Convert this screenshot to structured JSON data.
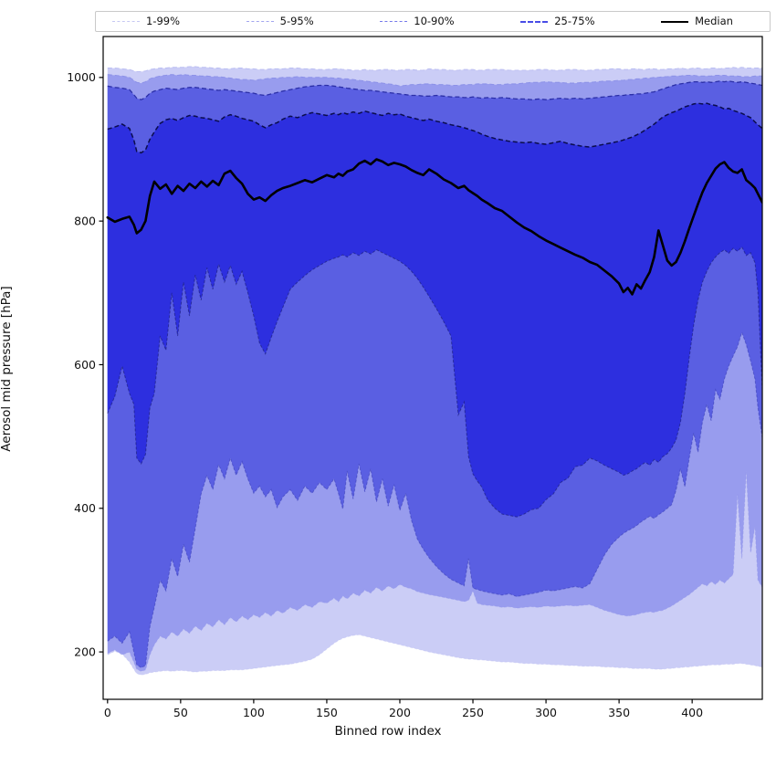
{
  "legend": {
    "entries": [
      {
        "label": "1-99%",
        "color": "#c6c8f3",
        "style": "dashed",
        "weight": 1.2
      },
      {
        "label": "5-95%",
        "color": "#a2a5ef",
        "style": "dashed",
        "weight": 1.2
      },
      {
        "label": "10-90%",
        "color": "#7579ea",
        "style": "dashed",
        "weight": 1.5
      },
      {
        "label": "25-75%",
        "color": "#484ce6",
        "style": "dashed",
        "weight": 2.0
      },
      {
        "label": "Median",
        "color": "#000000",
        "style": "solid",
        "weight": 2.8
      }
    ]
  },
  "axes": {
    "xlabel": "Binned row index",
    "ylabel": "Aerosol mid pressure [hPa]",
    "x_ticks": [
      0,
      50,
      100,
      150,
      200,
      250,
      300,
      350,
      400
    ],
    "y_ticks": [
      200,
      400,
      600,
      800,
      1000
    ]
  },
  "chart_data": {
    "type": "area",
    "subtype": "percentile-fan-chart",
    "title": "",
    "xlabel": "Binned row index",
    "ylabel": "Aerosol mid pressure [hPa]",
    "xlim": [
      -3,
      448
    ],
    "ylim": [
      134,
      1057
    ],
    "grid": false,
    "legend_position": "top-outside-horizontal",
    "x": [
      0,
      5,
      10,
      15,
      18,
      20,
      23,
      26,
      29,
      32,
      36,
      40,
      44,
      48,
      52,
      56,
      60,
      64,
      68,
      72,
      76,
      80,
      84,
      88,
      92,
      96,
      100,
      104,
      108,
      112,
      116,
      120,
      125,
      130,
      135,
      140,
      145,
      150,
      155,
      158,
      161,
      164,
      168,
      172,
      176,
      180,
      184,
      188,
      192,
      196,
      200,
      204,
      208,
      212,
      216,
      220,
      225,
      230,
      235,
      240,
      244,
      247,
      250,
      253,
      256,
      260,
      265,
      270,
      275,
      280,
      285,
      290,
      295,
      300,
      305,
      310,
      315,
      320,
      325,
      330,
      335,
      340,
      345,
      350,
      353,
      356,
      359,
      362,
      365,
      368,
      371,
      374,
      377,
      380,
      383,
      386,
      389,
      392,
      395,
      398,
      401,
      404,
      407,
      410,
      413,
      416,
      419,
      422,
      425,
      428,
      431,
      434,
      437,
      440,
      443,
      445,
      448
    ],
    "series": {
      "p01": [
        196,
        201,
        197,
        186,
        176,
        170,
        168,
        169,
        171,
        172,
        173,
        174,
        173,
        174,
        174,
        173,
        172,
        173,
        173,
        174,
        174,
        174,
        175,
        175,
        175,
        176,
        177,
        178,
        179,
        180,
        181,
        182,
        183,
        185,
        187,
        190,
        196,
        204,
        212,
        216,
        219,
        221,
        223,
        224,
        222,
        220,
        218,
        216,
        214,
        212,
        210,
        208,
        206,
        204,
        202,
        200,
        198,
        196,
        194,
        192,
        191,
        190,
        190,
        189,
        189,
        188,
        187,
        186,
        186,
        185,
        184,
        184,
        183,
        183,
        182,
        182,
        181,
        181,
        180,
        180,
        180,
        179,
        179,
        178,
        178,
        178,
        177,
        177,
        177,
        177,
        177,
        176,
        176,
        176,
        177,
        177,
        178,
        178,
        179,
        179,
        180,
        180,
        181,
        181,
        182,
        182,
        182,
        183,
        183,
        183,
        184,
        184,
        183,
        182,
        181,
        180,
        179
      ],
      "p05": [
        198,
        203,
        196,
        200,
        186,
        176,
        173,
        175,
        196,
        210,
        222,
        218,
        228,
        222,
        232,
        226,
        236,
        230,
        240,
        235,
        245,
        238,
        248,
        242,
        250,
        245,
        252,
        248,
        255,
        250,
        258,
        254,
        262,
        258,
        266,
        262,
        270,
        268,
        275,
        270,
        278,
        274,
        282,
        278,
        286,
        282,
        290,
        285,
        292,
        288,
        294,
        290,
        288,
        284,
        282,
        280,
        278,
        276,
        274,
        272,
        270,
        272,
        285,
        268,
        266,
        265,
        264,
        262,
        263,
        261,
        262,
        263,
        262,
        264,
        263,
        264,
        265,
        264,
        265,
        266,
        262,
        258,
        255,
        252,
        251,
        250,
        251,
        252,
        254,
        255,
        256,
        255,
        257,
        258,
        261,
        264,
        268,
        272,
        276,
        280,
        285,
        290,
        295,
        292,
        298,
        294,
        300,
        296,
        302,
        308,
        420,
        330,
        452,
        338,
        375,
        300,
        290
      ],
      "p10": [
        215,
        222,
        212,
        228,
        200,
        182,
        178,
        181,
        235,
        262,
        300,
        285,
        330,
        305,
        350,
        325,
        372,
        420,
        446,
        426,
        461,
        441,
        470,
        446,
        465,
        441,
        421,
        431,
        416,
        426,
        401,
        416,
        426,
        411,
        431,
        421,
        436,
        426,
        441,
        421,
        399,
        452,
        413,
        462,
        423,
        455,
        409,
        441,
        403,
        433,
        397,
        421,
        383,
        357,
        343,
        331,
        319,
        309,
        301,
        296,
        292,
        330,
        289,
        287,
        285,
        283,
        281,
        279,
        281,
        277,
        279,
        281,
        283,
        286,
        285,
        287,
        289,
        291,
        289,
        295,
        315,
        335,
        350,
        360,
        365,
        369,
        372,
        376,
        381,
        385,
        389,
        386,
        391,
        395,
        400,
        405,
        425,
        455,
        430,
        470,
        505,
        478,
        520,
        545,
        522,
        565,
        552,
        580,
        598,
        612,
        625,
        645,
        628,
        605,
        580,
        540,
        498
      ],
      "p25": [
        532,
        556,
        598,
        560,
        545,
        470,
        462,
        475,
        540,
        560,
        640,
        620,
        700,
        640,
        715,
        668,
        725,
        690,
        735,
        705,
        740,
        715,
        738,
        712,
        730,
        700,
        668,
        630,
        615,
        638,
        660,
        680,
        705,
        715,
        724,
        732,
        738,
        744,
        748,
        750,
        753,
        750,
        756,
        752,
        758,
        754,
        760,
        756,
        752,
        748,
        744,
        738,
        730,
        720,
        708,
        695,
        678,
        660,
        640,
        530,
        548,
        472,
        448,
        438,
        430,
        412,
        400,
        392,
        390,
        388,
        392,
        398,
        400,
        412,
        420,
        436,
        442,
        458,
        460,
        470,
        466,
        460,
        455,
        450,
        446,
        448,
        452,
        455,
        460,
        464,
        460,
        468,
        464,
        472,
        476,
        484,
        495,
        520,
        560,
        610,
        655,
        690,
        715,
        730,
        742,
        750,
        756,
        760,
        755,
        762,
        758,
        764,
        752,
        756,
        742,
        700,
        565
      ],
      "median": [
        805,
        799,
        803,
        806,
        795,
        783,
        788,
        800,
        835,
        855,
        845,
        851,
        838,
        849,
        842,
        852,
        846,
        855,
        848,
        856,
        850,
        866,
        870,
        860,
        852,
        838,
        830,
        833,
        828,
        836,
        842,
        846,
        849,
        853,
        857,
        854,
        859,
        864,
        861,
        866,
        863,
        869,
        872,
        880,
        884,
        879,
        886,
        883,
        878,
        881,
        879,
        876,
        871,
        867,
        864,
        872,
        866,
        858,
        853,
        846,
        849,
        843,
        839,
        835,
        830,
        825,
        818,
        814,
        806,
        798,
        791,
        786,
        779,
        773,
        768,
        763,
        758,
        753,
        749,
        743,
        739,
        731,
        723,
        713,
        701,
        707,
        698,
        712,
        706,
        718,
        729,
        750,
        787,
        766,
        745,
        738,
        743,
        756,
        772,
        790,
        807,
        824,
        840,
        853,
        863,
        873,
        879,
        882,
        874,
        869,
        867,
        872,
        857,
        852,
        846,
        838,
        826
      ],
      "p75": [
        928,
        931,
        935,
        929,
        913,
        897,
        895,
        899,
        914,
        924,
        936,
        941,
        943,
        940,
        944,
        947,
        946,
        944,
        943,
        941,
        939,
        945,
        948,
        946,
        943,
        941,
        939,
        934,
        930,
        934,
        937,
        942,
        946,
        944,
        948,
        951,
        949,
        947,
        950,
        948,
        951,
        949,
        952,
        950,
        953,
        951,
        949,
        947,
        950,
        948,
        949,
        946,
        944,
        942,
        940,
        942,
        939,
        937,
        934,
        932,
        930,
        928,
        926,
        924,
        921,
        918,
        915,
        913,
        911,
        910,
        909,
        910,
        908,
        907,
        909,
        911,
        908,
        906,
        904,
        903,
        905,
        907,
        909,
        911,
        913,
        915,
        917,
        920,
        923,
        927,
        931,
        935,
        940,
        945,
        948,
        951,
        953,
        956,
        959,
        961,
        963,
        964,
        963,
        964,
        962,
        961,
        959,
        956,
        957,
        954,
        952,
        950,
        947,
        944,
        938,
        934,
        929
      ],
      "p90": [
        988,
        986,
        985,
        983,
        976,
        971,
        969,
        972,
        978,
        981,
        983,
        985,
        984,
        983,
        985,
        986,
        986,
        985,
        984,
        983,
        982,
        983,
        982,
        981,
        980,
        979,
        978,
        976,
        975,
        977,
        979,
        981,
        983,
        985,
        987,
        988,
        989,
        989,
        988,
        987,
        986,
        985,
        984,
        983,
        982,
        982,
        981,
        980,
        979,
        978,
        977,
        976,
        975,
        975,
        974,
        974,
        975,
        974,
        973,
        973,
        972,
        972,
        973,
        972,
        971,
        972,
        971,
        972,
        971,
        970,
        970,
        969,
        970,
        969,
        970,
        971,
        970,
        971,
        970,
        971,
        972,
        973,
        974,
        975,
        975,
        976,
        976,
        977,
        977,
        978,
        979,
        980,
        982,
        984,
        986,
        988,
        990,
        991,
        992,
        993,
        994,
        994,
        993,
        994,
        993,
        994,
        995,
        994,
        995,
        994,
        993,
        994,
        993,
        992,
        991,
        990,
        989
      ],
      "p95": [
        1004,
        1003,
        1002,
        1000,
        996,
        993,
        992,
        994,
        998,
        1000,
        1002,
        1003,
        1004,
        1003,
        1004,
        1003,
        1003,
        1002,
        1002,
        1001,
        1001,
        1000,
        999,
        998,
        997,
        997,
        996,
        997,
        998,
        999,
        999,
        1000,
        1000,
        1001,
        1000,
        1000,
        1000,
        1000,
        999,
        999,
        998,
        998,
        997,
        996,
        995,
        994,
        993,
        992,
        991,
        990,
        988,
        989,
        990,
        990,
        991,
        991,
        990,
        990,
        989,
        989,
        990,
        990,
        990,
        991,
        991,
        991,
        990,
        990,
        991,
        991,
        992,
        993,
        993,
        994,
        993,
        993,
        992,
        992,
        993,
        993,
        994,
        995,
        995,
        996,
        996,
        997,
        997,
        998,
        998,
        999,
        999,
        1000,
        1000,
        1001,
        1001,
        1002,
        1002,
        1002,
        1003,
        1003,
        1003,
        1002,
        1002,
        1002,
        1002,
        1003,
        1003,
        1003,
        1002,
        1002,
        1002,
        1001,
        1001,
        1001,
        1002,
        1002,
        1002
      ],
      "p99": [
        1013,
        1013,
        1012,
        1011,
        1009,
        1008,
        1008,
        1009,
        1011,
        1012,
        1013,
        1013,
        1014,
        1014,
        1014,
        1015,
        1015,
        1014,
        1014,
        1013,
        1013,
        1012,
        1012,
        1013,
        1013,
        1012,
        1012,
        1011,
        1011,
        1012,
        1012,
        1012,
        1013,
        1013,
        1012,
        1012,
        1011,
        1011,
        1012,
        1012,
        1011,
        1011,
        1010,
        1010,
        1011,
        1010,
        1010,
        1011,
        1011,
        1010,
        1010,
        1011,
        1011,
        1010,
        1010,
        1012,
        1011,
        1011,
        1010,
        1010,
        1011,
        1011,
        1011,
        1010,
        1010,
        1011,
        1011,
        1011,
        1010,
        1010,
        1010,
        1010,
        1011,
        1011,
        1010,
        1010,
        1011,
        1011,
        1010,
        1010,
        1011,
        1011,
        1012,
        1012,
        1011,
        1011,
        1012,
        1012,
        1011,
        1011,
        1012,
        1012,
        1011,
        1011,
        1012,
        1012,
        1012,
        1013,
        1012,
        1012,
        1013,
        1013,
        1012,
        1012,
        1013,
        1013,
        1012,
        1013,
        1013,
        1014,
        1013,
        1014,
        1013,
        1013,
        1013,
        1013,
        1013
      ]
    },
    "bands": [
      {
        "name": "1-99%",
        "lower": "p01",
        "upper": "p99",
        "fill": "#cbcdf6",
        "edge": "#bcbff2",
        "edge_width": 1.1
      },
      {
        "name": "5-95%",
        "lower": "p05",
        "upper": "p95",
        "fill": "#989cee",
        "edge": "#8d92e8",
        "edge_width": 1.1
      },
      {
        "name": "10-90%",
        "lower": "p10",
        "upper": "p90",
        "fill": "#5a5fe2",
        "edge": "#2b2fa8",
        "edge_width": 1.3
      },
      {
        "name": "25-75%",
        "lower": "p25",
        "upper": "p75",
        "fill": "#2d2fdf",
        "edge": "#0b0d4d",
        "edge_width": 1.5
      }
    ],
    "median_style": {
      "color": "#000000",
      "width": 2.6
    }
  },
  "frame": {
    "color": "#000000",
    "tick_color": "#000000"
  }
}
